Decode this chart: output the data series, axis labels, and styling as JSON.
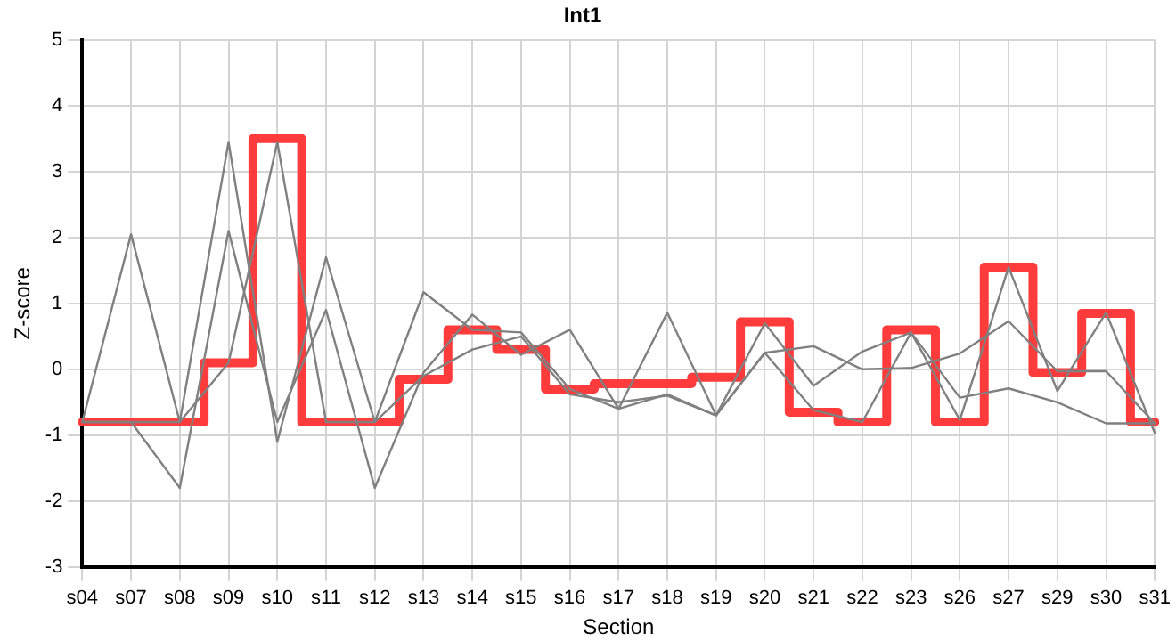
{
  "chart_data": {
    "type": "line",
    "title": "Int1",
    "xlabel": "Section",
    "ylabel": "Z-score",
    "categories": [
      "s04",
      "s07",
      "s08",
      "s09",
      "s10",
      "s11",
      "s12",
      "s13",
      "s14",
      "s15",
      "s16",
      "s17",
      "s18",
      "s19",
      "s20",
      "s21",
      "s22",
      "s23",
      "s26",
      "s27",
      "s29",
      "s30",
      "s31"
    ],
    "series": [
      {
        "color": "#808080",
        "values": [
          -0.8,
          2.05,
          -0.8,
          3.45,
          -1.1,
          1.7,
          -0.8,
          1.17,
          0.6,
          0.56,
          -0.3,
          -0.6,
          0.86,
          -0.7,
          0.7,
          -0.25,
          0.27,
          0.56,
          -0.77,
          1.55,
          -0.33,
          0.86,
          -0.97
        ]
      },
      {
        "color": "#808080",
        "values": [
          -0.8,
          -0.8,
          -1.8,
          2.1,
          -0.8,
          0.9,
          -1.8,
          -0.05,
          0.83,
          0.22,
          0.6,
          -0.6,
          -0.38,
          -0.7,
          0.25,
          0.35,
          0.0,
          0.02,
          0.24,
          0.73,
          -0.03,
          -0.03,
          -0.82
        ]
      },
      {
        "color": "#808080",
        "values": [
          -0.8,
          -0.8,
          -0.8,
          0.1,
          3.45,
          -0.8,
          -0.8,
          -0.1,
          0.3,
          0.5,
          -0.38,
          -0.5,
          -0.4,
          -0.7,
          0.25,
          -0.62,
          -0.8,
          0.56,
          -0.43,
          -0.29,
          -0.5,
          -0.82,
          -0.82
        ]
      },
      {
        "type": "step",
        "color": "#ff3b3b",
        "values": [
          -0.8,
          -0.8,
          -0.8,
          0.1,
          3.5,
          -0.8,
          -0.8,
          -0.15,
          0.6,
          0.3,
          -0.3,
          -0.22,
          -0.22,
          -0.12,
          0.72,
          -0.65,
          -0.8,
          0.6,
          -0.8,
          1.55,
          -0.05,
          0.85,
          -0.8
        ]
      }
    ],
    "ylim": [
      -3,
      5
    ],
    "yticks": [
      -3,
      -2,
      -1,
      0,
      1,
      2,
      3,
      4,
      5
    ],
    "grid": true,
    "legend": false,
    "marker": "none",
    "line_style": "solid"
  }
}
